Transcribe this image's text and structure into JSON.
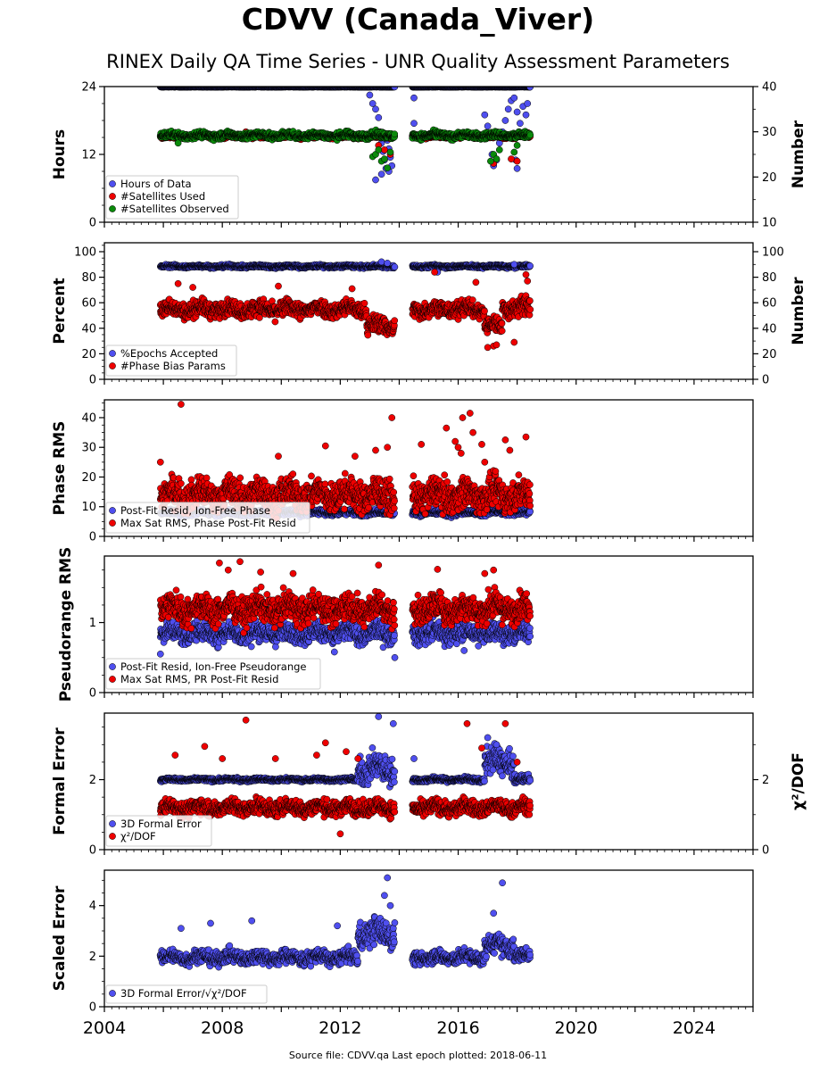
{
  "title": "CDVV (Canada_Viver)",
  "subtitle": "RINEX Daily QA Time Series - UNR Quality Assessment Parameters",
  "footer": "Source file: CDVV.qa Last epoch plotted: 2018-06-11",
  "colors": {
    "blue": "#4f4fef",
    "red": "#ee0000",
    "green": "#0a8a0a",
    "marker_edge": "#000000"
  },
  "chart_data": [
    {
      "type": "scatter",
      "xlim": [
        2004,
        2026
      ],
      "x_ticks": [
        2004,
        2008,
        2012,
        2016,
        2020,
        2024
      ],
      "ylabel": "Hours",
      "ylim": [
        0,
        24
      ],
      "y_ticks": [
        0,
        12,
        24
      ],
      "y2label": "Number",
      "y2lim": [
        10,
        40
      ],
      "y2_ticks": [
        10,
        20,
        30,
        40
      ],
      "legend_position": "lower-left",
      "series": [
        {
          "name": "Hours of Data",
          "color": "blue",
          "axis": "left",
          "segments": [
            [
              2005.9,
              2013.85,
              23.95,
              0.05
            ],
            [
              2014.45,
              2018.45,
              23.95,
              0.05
            ]
          ],
          "outliers": [
            [
              2013.0,
              22.5
            ],
            [
              2013.1,
              21.0
            ],
            [
              2013.2,
              20.0
            ],
            [
              2013.3,
              18.5
            ],
            [
              2013.35,
              16.0
            ],
            [
              2013.4,
              14.0
            ],
            [
              2013.45,
              12.5
            ],
            [
              2013.5,
              11.0
            ],
            [
              2013.55,
              9.5
            ],
            [
              2013.6,
              14.5
            ],
            [
              2013.65,
              13.0
            ],
            [
              2013.7,
              11.5
            ],
            [
              2013.75,
              10.0
            ],
            [
              2013.2,
              7.5
            ],
            [
              2013.4,
              8.5
            ],
            [
              2013.65,
              9.0
            ],
            [
              2014.5,
              17.5
            ],
            [
              2014.5,
              22.0
            ],
            [
              2016.9,
              19.0
            ],
            [
              2017.0,
              17.0
            ],
            [
              2017.1,
              15.0
            ],
            [
              2017.15,
              12.0
            ],
            [
              2017.2,
              10.0
            ],
            [
              2017.3,
              11.0
            ],
            [
              2017.4,
              14.0
            ],
            [
              2017.5,
              16.0
            ],
            [
              2017.6,
              18.0
            ],
            [
              2017.7,
              20.0
            ],
            [
              2017.8,
              21.5
            ],
            [
              2017.9,
              22.0
            ],
            [
              2018.0,
              19.5
            ],
            [
              2018.1,
              17.5
            ],
            [
              2018.2,
              20.5
            ],
            [
              2018.3,
              19.0
            ],
            [
              2018.35,
              21.0
            ],
            [
              2017.95,
              11.0
            ],
            [
              2018.0,
              9.5
            ]
          ]
        },
        {
          "name": "#Satellites Used",
          "color": "red",
          "axis": "right",
          "segments": [
            [
              2005.9,
              2013.85,
              29.0,
              0.6
            ],
            [
              2014.45,
              2018.45,
              29.0,
              0.6
            ]
          ],
          "outliers": [
            [
              2008.8,
              30.0
            ],
            [
              2013.3,
              27.0
            ],
            [
              2013.5,
              26.0
            ],
            [
              2013.7,
              25.0
            ],
            [
              2017.2,
              23.0
            ],
            [
              2017.8,
              24.0
            ],
            [
              2018.0,
              23.5
            ]
          ]
        },
        {
          "name": "#Satellites Observed",
          "color": "green",
          "axis": "right",
          "segments": [
            [
              2005.9,
              2013.85,
              29.2,
              0.9
            ],
            [
              2014.45,
              2018.45,
              29.2,
              0.9
            ]
          ],
          "outliers": [
            [
              2006.5,
              27.5
            ],
            [
              2013.1,
              24.5
            ],
            [
              2013.2,
              25.0
            ],
            [
              2013.3,
              26.0
            ],
            [
              2013.4,
              23.5
            ],
            [
              2013.5,
              24.0
            ],
            [
              2013.6,
              22.0
            ],
            [
              2013.7,
              25.5
            ],
            [
              2017.1,
              23.5
            ],
            [
              2017.2,
              25.0
            ],
            [
              2017.3,
              24.0
            ],
            [
              2017.4,
              26.0
            ],
            [
              2017.9,
              25.5
            ],
            [
              2018.0,
              27.0
            ]
          ]
        }
      ]
    },
    {
      "type": "scatter",
      "xlim": [
        2004,
        2026
      ],
      "x_ticks": [
        2004,
        2008,
        2012,
        2016,
        2020,
        2024
      ],
      "ylabel": "Percent",
      "ylim": [
        0,
        107
      ],
      "y_ticks": [
        0,
        20,
        40,
        60,
        80,
        100
      ],
      "y2label": "Number",
      "y2lim": [
        0,
        107
      ],
      "y2_ticks": [
        0,
        20,
        40,
        60,
        80,
        100
      ],
      "legend_position": "lower-left",
      "series": [
        {
          "name": "%Epochs Accepted",
          "color": "blue",
          "axis": "left",
          "segments": [
            [
              2005.9,
              2013.85,
              88.5,
              1.5
            ],
            [
              2014.45,
              2018.45,
              88.5,
              1.5
            ]
          ],
          "outliers": [
            [
              2013.4,
              92.0
            ],
            [
              2013.6,
              91.0
            ],
            [
              2015.3,
              84.0
            ],
            [
              2017.9,
              90.0
            ]
          ]
        },
        {
          "name": "#Phase Bias Params",
          "color": "red",
          "axis": "right",
          "segments": [
            [
              2005.9,
              2012.9,
              55.0,
              8.0
            ],
            [
              2012.9,
              2013.85,
              42.0,
              9.0
            ],
            [
              2014.45,
              2016.9,
              55.0,
              8.0
            ],
            [
              2016.9,
              2017.5,
              42.0,
              8.0
            ],
            [
              2017.5,
              2018.45,
              56.0,
              9.0
            ]
          ],
          "outliers": [
            [
              2006.5,
              75.0
            ],
            [
              2007.0,
              72.0
            ],
            [
              2009.9,
              73.0
            ],
            [
              2012.4,
              71.0
            ],
            [
              2015.2,
              84.0
            ],
            [
              2016.6,
              76.0
            ],
            [
              2017.2,
              26.0
            ],
            [
              2017.3,
              27.0
            ],
            [
              2017.9,
              29.0
            ],
            [
              2018.3,
              82.0
            ],
            [
              2018.35,
              77.0
            ],
            [
              2017.0,
              25.0
            ]
          ]
        }
      ]
    },
    {
      "type": "scatter",
      "xlim": [
        2004,
        2026
      ],
      "x_ticks": [
        2004,
        2008,
        2012,
        2016,
        2020,
        2024
      ],
      "ylabel": "Phase RMS",
      "ylim": [
        0,
        46
      ],
      "y_ticks": [
        0,
        10,
        20,
        30,
        40
      ],
      "legend_position": "lower-left",
      "series": [
        {
          "name": "Post-Fit Resid, Ion-Free Phase",
          "color": "blue",
          "axis": "left",
          "segments": [
            [
              2005.9,
              2013.85,
              8.0,
              1.2
            ],
            [
              2014.45,
              2018.45,
              8.0,
              1.2
            ]
          ],
          "outliers": [
            [
              2013.5,
              10.0
            ],
            [
              2013.7,
              11.0
            ]
          ]
        },
        {
          "name": "Max Sat RMS, Phase Post-Fit Resid",
          "color": "red",
          "axis": "left",
          "segments": [
            [
              2005.9,
              2013.85,
              14.0,
              6.5
            ],
            [
              2014.45,
              2018.45,
              14.0,
              6.5
            ]
          ],
          "outliers": [
            [
              2005.9,
              25.0
            ],
            [
              2006.6,
              44.5
            ],
            [
              2009.9,
              27.0
            ],
            [
              2011.5,
              30.5
            ],
            [
              2012.5,
              27.0
            ],
            [
              2013.2,
              29.0
            ],
            [
              2013.6,
              30.0
            ],
            [
              2013.75,
              40.0
            ],
            [
              2014.75,
              31.0
            ],
            [
              2015.6,
              36.5
            ],
            [
              2015.9,
              32.0
            ],
            [
              2016.1,
              28.0
            ],
            [
              2016.0,
              30.0
            ],
            [
              2016.15,
              40.0
            ],
            [
              2016.4,
              41.5
            ],
            [
              2016.5,
              35.0
            ],
            [
              2016.8,
              31.0
            ],
            [
              2016.9,
              25.0
            ],
            [
              2017.6,
              32.5
            ],
            [
              2017.75,
              29.0
            ],
            [
              2018.3,
              33.5
            ]
          ]
        }
      ]
    },
    {
      "type": "scatter",
      "xlim": [
        2004,
        2026
      ],
      "x_ticks": [
        2004,
        2008,
        2012,
        2016,
        2020,
        2024
      ],
      "ylabel": "Pseudorange RMS",
      "ylim": [
        0,
        1.95
      ],
      "y_ticks": [
        0,
        1
      ],
      "legend_position": "lower-left",
      "series": [
        {
          "name": "Post-Fit Resid, Ion-Free Pseudorange",
          "color": "blue",
          "axis": "left",
          "segments": [
            [
              2005.9,
              2013.85,
              0.85,
              0.18
            ],
            [
              2014.45,
              2018.45,
              0.85,
              0.18
            ]
          ],
          "outliers": [
            [
              2005.9,
              0.55
            ],
            [
              2011.8,
              0.58
            ],
            [
              2013.85,
              0.5
            ],
            [
              2016.2,
              0.6
            ]
          ]
        },
        {
          "name": "Max Sat RMS, PR Post-Fit Resid",
          "color": "red",
          "axis": "left",
          "segments": [
            [
              2005.9,
              2013.85,
              1.2,
              0.25
            ],
            [
              2014.45,
              2018.45,
              1.2,
              0.25
            ]
          ],
          "outliers": [
            [
              2007.9,
              1.85
            ],
            [
              2008.6,
              1.87
            ],
            [
              2008.2,
              1.75
            ],
            [
              2009.3,
              1.72
            ],
            [
              2010.4,
              1.7
            ],
            [
              2013.3,
              1.82
            ],
            [
              2015.3,
              1.76
            ],
            [
              2016.9,
              1.7
            ],
            [
              2017.2,
              1.75
            ]
          ]
        }
      ]
    },
    {
      "type": "scatter",
      "xlim": [
        2004,
        2026
      ],
      "x_ticks": [
        2004,
        2008,
        2012,
        2016,
        2020,
        2024
      ],
      "ylabel": "Formal Error",
      "ylim": [
        0,
        3.9
      ],
      "y_ticks": [
        0,
        2
      ],
      "y2label": "χ²/DOF",
      "y2lim": [
        0,
        3.9
      ],
      "y2_ticks": [
        0,
        2
      ],
      "legend_position": "lower-left",
      "series": [
        {
          "name": "3D Formal Error",
          "color": "blue",
          "axis": "left",
          "segments": [
            [
              2005.9,
              2012.6,
              2.0,
              0.06
            ],
            [
              2012.6,
              2013.85,
              2.3,
              0.5
            ],
            [
              2014.45,
              2016.9,
              2.0,
              0.08
            ],
            [
              2016.9,
              2017.9,
              2.5,
              0.5
            ],
            [
              2017.9,
              2018.45,
              2.0,
              0.15
            ]
          ],
          "outliers": [
            [
              2013.3,
              3.8
            ],
            [
              2013.8,
              3.6
            ],
            [
              2014.5,
              2.6
            ],
            [
              2017.0,
              3.2
            ],
            [
              2017.3,
              3.0
            ]
          ]
        },
        {
          "name": "χ²/DOF",
          "color": "red",
          "axis": "right",
          "segments": [
            [
              2005.9,
              2013.85,
              1.2,
              0.28
            ],
            [
              2014.45,
              2018.45,
              1.2,
              0.28
            ]
          ],
          "outliers": [
            [
              2006.4,
              2.7
            ],
            [
              2007.4,
              2.95
            ],
            [
              2008.0,
              2.6
            ],
            [
              2008.8,
              3.7
            ],
            [
              2009.8,
              2.6
            ],
            [
              2011.2,
              2.7
            ],
            [
              2011.5,
              3.05
            ],
            [
              2012.2,
              2.8
            ],
            [
              2012.6,
              2.6
            ],
            [
              2012.0,
              0.45
            ],
            [
              2016.3,
              3.6
            ],
            [
              2016.8,
              2.9
            ],
            [
              2017.6,
              3.6
            ],
            [
              2018.0,
              2.5
            ]
          ]
        }
      ]
    },
    {
      "type": "scatter",
      "xlim": [
        2004,
        2026
      ],
      "x_ticks": [
        2004,
        2008,
        2012,
        2016,
        2020,
        2024
      ],
      "ylabel": "Scaled Error",
      "ylim": [
        0,
        5.4
      ],
      "y_ticks": [
        0,
        2,
        4
      ],
      "legend_position": "lower-left",
      "series": [
        {
          "name": "3D Formal Error/√χ²/DOF",
          "color": "blue",
          "axis": "left",
          "segments": [
            [
              2005.9,
              2012.6,
              1.95,
              0.35
            ],
            [
              2012.6,
              2013.85,
              2.9,
              0.7
            ],
            [
              2014.45,
              2016.9,
              1.95,
              0.35
            ],
            [
              2016.9,
              2017.9,
              2.4,
              0.5
            ],
            [
              2017.9,
              2018.45,
              2.0,
              0.35
            ]
          ],
          "outliers": [
            [
              2006.6,
              3.1
            ],
            [
              2007.6,
              3.3
            ],
            [
              2009.0,
              3.4
            ],
            [
              2011.9,
              3.2
            ],
            [
              2013.5,
              4.4
            ],
            [
              2013.6,
              5.1
            ],
            [
              2013.7,
              4.0
            ],
            [
              2017.2,
              3.7
            ],
            [
              2017.5,
              4.9
            ]
          ]
        }
      ]
    }
  ]
}
